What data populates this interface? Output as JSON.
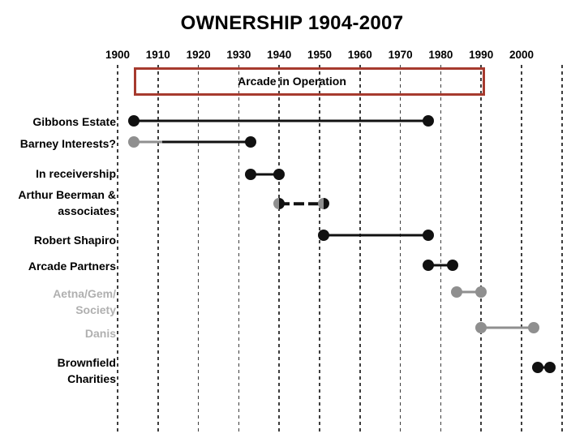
{
  "title": "OWNERSHIP 1904-2007",
  "chart_data": {
    "type": "bar",
    "subtype": "gantt-ownership-timeline",
    "title": "OWNERSHIP 1904-2007",
    "xlabel": "",
    "ylabel": "",
    "legend": "none",
    "grid": "vertical-dashed",
    "x_axis": {
      "range": [
        1894,
        2013
      ],
      "tick_labels": [
        "1900",
        "1910",
        "1920",
        "1930",
        "1940",
        "1950",
        "1960",
        "1970",
        "1980",
        "1990",
        "2000"
      ],
      "tick_years": [
        1900,
        1910,
        1920,
        1930,
        1940,
        1950,
        1960,
        1970,
        1980,
        1990,
        2000
      ],
      "gridline_years": [
        1900,
        1910,
        1920,
        1930,
        1940,
        1950,
        1960,
        1970,
        1980,
        1990,
        2000,
        2010
      ],
      "axis_position": "top"
    },
    "operation_band": {
      "label": "Arcade in Operation",
      "start": 1904,
      "end": 1991,
      "border_color": "#a63a2e"
    },
    "rows": [
      {
        "label_lines": [
          "Gibbons Estate"
        ],
        "label_color": "black",
        "segments": [
          {
            "from": 1904,
            "to": 1977,
            "style": "solid",
            "color": "black"
          }
        ],
        "dots": [
          {
            "year": 1904,
            "fill": "black"
          },
          {
            "year": 1977,
            "fill": "black"
          }
        ]
      },
      {
        "label_lines": [
          "Barney Interests?"
        ],
        "label_color": "black",
        "note": "uncertain start (gray dot)",
        "segments": [
          {
            "from": 1904,
            "to": 1911,
            "style": "solid",
            "color": "gray"
          },
          {
            "from": 1911,
            "to": 1933,
            "style": "solid",
            "color": "black"
          }
        ],
        "dots": [
          {
            "year": 1904,
            "fill": "gray"
          },
          {
            "year": 1933,
            "fill": "black"
          }
        ]
      },
      {
        "label_lines": [
          "In receivership"
        ],
        "label_color": "black",
        "segments": [
          {
            "from": 1933,
            "to": 1940,
            "style": "solid",
            "color": "black"
          }
        ],
        "dots": [
          {
            "year": 1933,
            "fill": "black"
          },
          {
            "year": 1940,
            "fill": "black"
          }
        ]
      },
      {
        "label_lines": [
          "Arthur Beerman &",
          "associates"
        ],
        "label_color": "black",
        "segments": [
          {
            "from": 1940,
            "to": 1951,
            "style": "dashed",
            "color": "black"
          }
        ],
        "dots": [
          {
            "year": 1940,
            "fill": "split"
          },
          {
            "year": 1951,
            "fill": "split"
          }
        ]
      },
      {
        "label_lines": [
          "Robert Shapiro"
        ],
        "label_color": "black",
        "segments": [
          {
            "from": 1951,
            "to": 1977,
            "style": "solid",
            "color": "black"
          }
        ],
        "dots": [
          {
            "year": 1951,
            "fill": "black"
          },
          {
            "year": 1977,
            "fill": "black"
          }
        ]
      },
      {
        "label_lines": [
          "Arcade Partners"
        ],
        "label_color": "black",
        "segments": [
          {
            "from": 1977,
            "to": 1983,
            "style": "solid",
            "color": "black"
          }
        ],
        "dots": [
          {
            "year": 1977,
            "fill": "black"
          },
          {
            "year": 1983,
            "fill": "black"
          }
        ]
      },
      {
        "label_lines": [
          "Aetna/Gem/",
          "Society"
        ],
        "label_color": "gray",
        "segments": [
          {
            "from": 1984,
            "to": 1990,
            "style": "solid",
            "color": "gray"
          }
        ],
        "dots": [
          {
            "year": 1984,
            "fill": "gray"
          },
          {
            "year": 1990,
            "fill": "gray"
          }
        ]
      },
      {
        "label_lines": [
          "Danis"
        ],
        "label_color": "gray",
        "segments": [
          {
            "from": 1990,
            "to": 2003,
            "style": "solid",
            "color": "gray"
          }
        ],
        "dots": [
          {
            "year": 1990,
            "fill": "gray"
          },
          {
            "year": 2003,
            "fill": "gray"
          }
        ]
      },
      {
        "label_lines": [
          "Brownfield",
          "Charities"
        ],
        "label_color": "black",
        "segments": [
          {
            "from": 2004,
            "to": 2007,
            "style": "solid",
            "color": "black"
          }
        ],
        "dots": [
          {
            "year": 2004,
            "fill": "black"
          },
          {
            "year": 2007,
            "fill": "black"
          }
        ]
      }
    ],
    "colors": {
      "black": "#111111",
      "gray": "#8f8f8f",
      "label_gray": "#b0b0b0",
      "band_red": "#a63a2e"
    }
  }
}
